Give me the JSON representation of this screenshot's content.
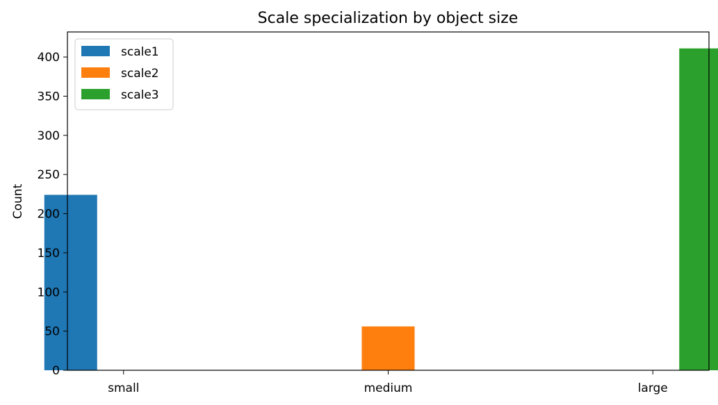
{
  "chart_data": {
    "type": "bar",
    "title": "Scale specialization by object size",
    "xlabel": "",
    "ylabel": "Count",
    "categories": [
      "small",
      "medium",
      "large"
    ],
    "series": [
      {
        "name": "scale1",
        "color": "#1f77b4",
        "values": [
          224,
          0,
          0
        ]
      },
      {
        "name": "scale2",
        "color": "#ff7f0e",
        "values": [
          0,
          56,
          0
        ]
      },
      {
        "name": "scale3",
        "color": "#2ca02c",
        "values": [
          0,
          0,
          411
        ]
      }
    ],
    "ylim": [
      0,
      432
    ],
    "yticks": [
      0,
      50,
      100,
      150,
      200,
      250,
      300,
      350,
      400
    ],
    "grid": false,
    "legend_position": "top-left"
  }
}
